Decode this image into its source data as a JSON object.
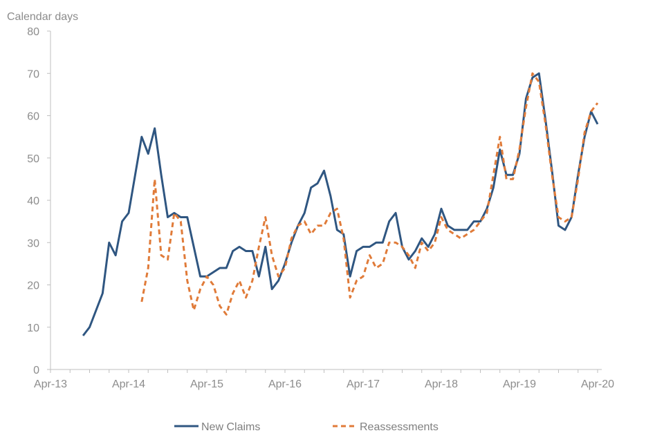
{
  "chart_data": {
    "type": "line",
    "ylabel": "Calendar days",
    "xlabel": "",
    "ylim": [
      0,
      80
    ],
    "y_ticks": [
      0,
      10,
      20,
      30,
      40,
      50,
      60,
      70,
      80
    ],
    "x_ticks": [
      "Apr-13",
      "Apr-14",
      "Apr-15",
      "Apr-16",
      "Apr-17",
      "Apr-18",
      "Apr-19",
      "Apr-20"
    ],
    "x_range_months": [
      "2013-04",
      "2020-04"
    ],
    "grid": false,
    "legend_position": "bottom",
    "series": [
      {
        "name": "New Claims",
        "color": "#2f5681",
        "style": "solid",
        "points": [
          [
            "2013-09",
            8
          ],
          [
            "2013-10",
            10
          ],
          [
            "2013-11",
            14
          ],
          [
            "2013-12",
            18
          ],
          [
            "2014-01",
            30
          ],
          [
            "2014-02",
            27
          ],
          [
            "2014-03",
            35
          ],
          [
            "2014-04",
            37
          ],
          [
            "2014-05",
            46
          ],
          [
            "2014-06",
            55
          ],
          [
            "2014-07",
            51
          ],
          [
            "2014-08",
            57
          ],
          [
            "2014-09",
            46
          ],
          [
            "2014-10",
            36
          ],
          [
            "2014-11",
            37
          ],
          [
            "2014-12",
            36
          ],
          [
            "2015-01",
            36
          ],
          [
            "2015-02",
            29
          ],
          [
            "2015-03",
            22
          ],
          [
            "2015-04",
            22
          ],
          [
            "2015-05",
            23
          ],
          [
            "2015-06",
            24
          ],
          [
            "2015-07",
            24
          ],
          [
            "2015-08",
            28
          ],
          [
            "2015-09",
            29
          ],
          [
            "2015-10",
            28
          ],
          [
            "2015-11",
            28
          ],
          [
            "2015-12",
            22
          ],
          [
            "2016-01",
            29
          ],
          [
            "2016-02",
            19
          ],
          [
            "2016-03",
            21
          ],
          [
            "2016-04",
            25
          ],
          [
            "2016-05",
            30
          ],
          [
            "2016-06",
            34
          ],
          [
            "2016-07",
            37
          ],
          [
            "2016-08",
            43
          ],
          [
            "2016-09",
            44
          ],
          [
            "2016-10",
            47
          ],
          [
            "2016-11",
            41
          ],
          [
            "2016-12",
            33
          ],
          [
            "2017-01",
            32
          ],
          [
            "2017-02",
            22
          ],
          [
            "2017-03",
            28
          ],
          [
            "2017-04",
            29
          ],
          [
            "2017-05",
            29
          ],
          [
            "2017-06",
            30
          ],
          [
            "2017-07",
            30
          ],
          [
            "2017-08",
            35
          ],
          [
            "2017-09",
            37
          ],
          [
            "2017-10",
            29
          ],
          [
            "2017-11",
            26
          ],
          [
            "2017-12",
            28
          ],
          [
            "2018-01",
            31
          ],
          [
            "2018-02",
            29
          ],
          [
            "2018-03",
            32
          ],
          [
            "2018-04",
            38
          ],
          [
            "2018-05",
            34
          ],
          [
            "2018-06",
            33
          ],
          [
            "2018-07",
            33
          ],
          [
            "2018-08",
            33
          ],
          [
            "2018-09",
            35
          ],
          [
            "2018-10",
            35
          ],
          [
            "2018-11",
            38
          ],
          [
            "2018-12",
            43
          ],
          [
            "2019-01",
            52
          ],
          [
            "2019-02",
            46
          ],
          [
            "2019-03",
            46
          ],
          [
            "2019-04",
            51
          ],
          [
            "2019-05",
            64
          ],
          [
            "2019-06",
            69
          ],
          [
            "2019-07",
            70
          ],
          [
            "2019-08",
            59
          ],
          [
            "2019-09",
            47
          ],
          [
            "2019-10",
            34
          ],
          [
            "2019-11",
            33
          ],
          [
            "2019-12",
            36
          ],
          [
            "2020-01",
            46
          ],
          [
            "2020-02",
            55
          ],
          [
            "2020-03",
            61
          ],
          [
            "2020-04",
            58
          ]
        ]
      },
      {
        "name": "Reassessments",
        "color": "#e07b39",
        "style": "dashed",
        "points": [
          [
            "2014-06",
            16
          ],
          [
            "2014-07",
            24
          ],
          [
            "2014-08",
            45
          ],
          [
            "2014-09",
            27
          ],
          [
            "2014-10",
            26
          ],
          [
            "2014-11",
            37
          ],
          [
            "2014-12",
            35
          ],
          [
            "2015-01",
            21
          ],
          [
            "2015-02",
            14
          ],
          [
            "2015-03",
            19
          ],
          [
            "2015-04",
            22
          ],
          [
            "2015-05",
            20
          ],
          [
            "2015-06",
            15
          ],
          [
            "2015-07",
            13
          ],
          [
            "2015-08",
            18
          ],
          [
            "2015-09",
            21
          ],
          [
            "2015-10",
            17
          ],
          [
            "2015-11",
            21
          ],
          [
            "2015-12",
            29
          ],
          [
            "2016-01",
            36
          ],
          [
            "2016-02",
            27
          ],
          [
            "2016-03",
            22
          ],
          [
            "2016-04",
            24
          ],
          [
            "2016-05",
            31
          ],
          [
            "2016-06",
            34
          ],
          [
            "2016-07",
            35
          ],
          [
            "2016-08",
            32
          ],
          [
            "2016-09",
            34
          ],
          [
            "2016-10",
            34
          ],
          [
            "2016-11",
            37
          ],
          [
            "2016-12",
            38
          ],
          [
            "2017-01",
            31
          ],
          [
            "2017-02",
            17
          ],
          [
            "2017-03",
            21
          ],
          [
            "2017-04",
            22
          ],
          [
            "2017-05",
            27
          ],
          [
            "2017-06",
            24
          ],
          [
            "2017-07",
            25
          ],
          [
            "2017-08",
            30
          ],
          [
            "2017-09",
            30
          ],
          [
            "2017-10",
            29
          ],
          [
            "2017-11",
            27
          ],
          [
            "2017-12",
            24
          ],
          [
            "2018-01",
            30
          ],
          [
            "2018-02",
            28
          ],
          [
            "2018-03",
            30
          ],
          [
            "2018-04",
            36
          ],
          [
            "2018-05",
            33
          ],
          [
            "2018-06",
            32
          ],
          [
            "2018-07",
            31
          ],
          [
            "2018-08",
            32
          ],
          [
            "2018-09",
            33
          ],
          [
            "2018-10",
            35
          ],
          [
            "2018-11",
            37
          ],
          [
            "2018-12",
            46
          ],
          [
            "2019-01",
            55
          ],
          [
            "2019-02",
            45
          ],
          [
            "2019-03",
            45
          ],
          [
            "2019-04",
            52
          ],
          [
            "2019-05",
            62
          ],
          [
            "2019-06",
            70
          ],
          [
            "2019-07",
            68
          ],
          [
            "2019-08",
            58
          ],
          [
            "2019-09",
            46
          ],
          [
            "2019-10",
            36
          ],
          [
            "2019-11",
            35
          ],
          [
            "2019-12",
            36
          ],
          [
            "2020-01",
            45
          ],
          [
            "2020-02",
            56
          ],
          [
            "2020-03",
            61
          ],
          [
            "2020-04",
            63
          ]
        ]
      }
    ]
  }
}
